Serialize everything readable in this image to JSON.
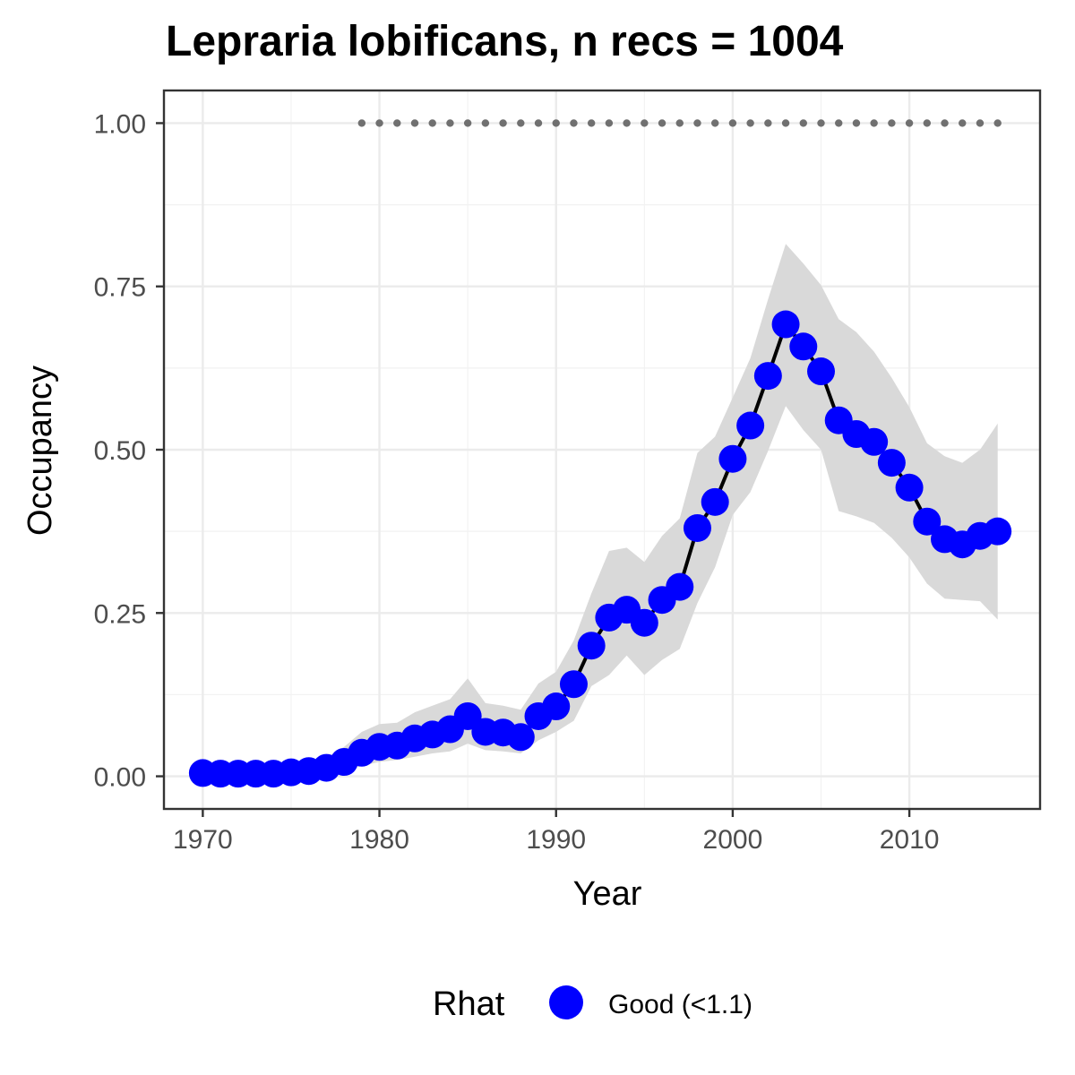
{
  "chart_data": {
    "type": "line",
    "title": "Lepraria lobificans, n recs = 1004",
    "xlabel": "Year",
    "ylabel": "Occupancy",
    "xlim": [
      1967.8,
      1917.4
    ],
    "ylim": [
      -0.05,
      1.05
    ],
    "x_ticks": [
      1970,
      1980,
      1990,
      2000,
      2010
    ],
    "x_tick_labels": [
      "1970",
      "1980",
      "1990",
      "2000",
      "2010"
    ],
    "y_ticks": [
      0,
      0.25,
      0.5,
      0.75,
      1
    ],
    "y_tick_labels": [
      "0.00",
      "0.25",
      "0.50",
      "0.75",
      "1.00"
    ],
    "grid": true,
    "legend": {
      "title": "Rhat",
      "position": "bottom",
      "entries": [
        {
          "label": "Good (<1.1)",
          "color": "#0000ff"
        }
      ]
    },
    "colors": {
      "points": "#0000ff",
      "line": "#000000",
      "ribbon": "#d9d9d9",
      "rug": "#707070"
    },
    "series": [
      {
        "name": "Good (<1.1)",
        "x": [
          1970,
          1971,
          1972,
          1973,
          1974,
          1975,
          1976,
          1977,
          1978,
          1979,
          1980,
          1981,
          1982,
          1983,
          1984,
          1985,
          1986,
          1987,
          1988,
          1989,
          1990,
          1991,
          1992,
          1993,
          1994,
          1995,
          1996,
          1997,
          1998,
          1999,
          2000,
          2001,
          2002,
          2003,
          2004,
          2005,
          2006,
          2007,
          2008,
          2009,
          2010,
          2011,
          2012,
          2013,
          2014,
          2015
        ],
        "y": [
          0.005,
          0.004,
          0.004,
          0.004,
          0.004,
          0.006,
          0.008,
          0.013,
          0.022,
          0.036,
          0.045,
          0.047,
          0.058,
          0.064,
          0.072,
          0.092,
          0.068,
          0.067,
          0.06,
          0.092,
          0.107,
          0.141,
          0.2,
          0.243,
          0.255,
          0.235,
          0.27,
          0.29,
          0.38,
          0.42,
          0.486,
          0.537,
          0.613,
          0.692,
          0.658,
          0.62,
          0.545,
          0.524,
          0.512,
          0.48,
          0.442,
          0.39,
          0.363,
          0.355,
          0.368,
          0.375
        ],
        "lower": [
          0.0,
          0.0,
          0.0,
          0.0,
          0.0,
          0.0,
          0.0,
          0.002,
          0.008,
          0.016,
          0.022,
          0.025,
          0.03,
          0.035,
          0.038,
          0.05,
          0.04,
          0.038,
          0.035,
          0.055,
          0.068,
          0.085,
          0.138,
          0.155,
          0.185,
          0.155,
          0.178,
          0.195,
          0.265,
          0.32,
          0.4,
          0.435,
          0.498,
          0.567,
          0.53,
          0.5,
          0.406,
          0.398,
          0.388,
          0.365,
          0.335,
          0.295,
          0.272,
          0.27,
          0.268,
          0.24
        ],
        "upper": [
          0.012,
          0.01,
          0.01,
          0.01,
          0.01,
          0.014,
          0.018,
          0.028,
          0.045,
          0.068,
          0.08,
          0.082,
          0.098,
          0.108,
          0.118,
          0.15,
          0.112,
          0.108,
          0.102,
          0.142,
          0.16,
          0.208,
          0.28,
          0.345,
          0.35,
          0.328,
          0.368,
          0.395,
          0.495,
          0.52,
          0.58,
          0.64,
          0.73,
          0.815,
          0.785,
          0.752,
          0.7,
          0.68,
          0.65,
          0.61,
          0.565,
          0.51,
          0.49,
          0.48,
          0.5,
          0.54
        ]
      }
    ],
    "rug": {
      "y": 1,
      "x": [
        1979,
        1980,
        1981,
        1982,
        1983,
        1984,
        1985,
        1986,
        1987,
        1988,
        1989,
        1990,
        1991,
        1992,
        1993,
        1994,
        1995,
        1996,
        1997,
        1998,
        1999,
        2000,
        2001,
        2002,
        2003,
        2004,
        2005,
        2006,
        2007,
        2008,
        2009,
        2010,
        2011,
        2012,
        2013,
        2014,
        2015
      ]
    }
  }
}
